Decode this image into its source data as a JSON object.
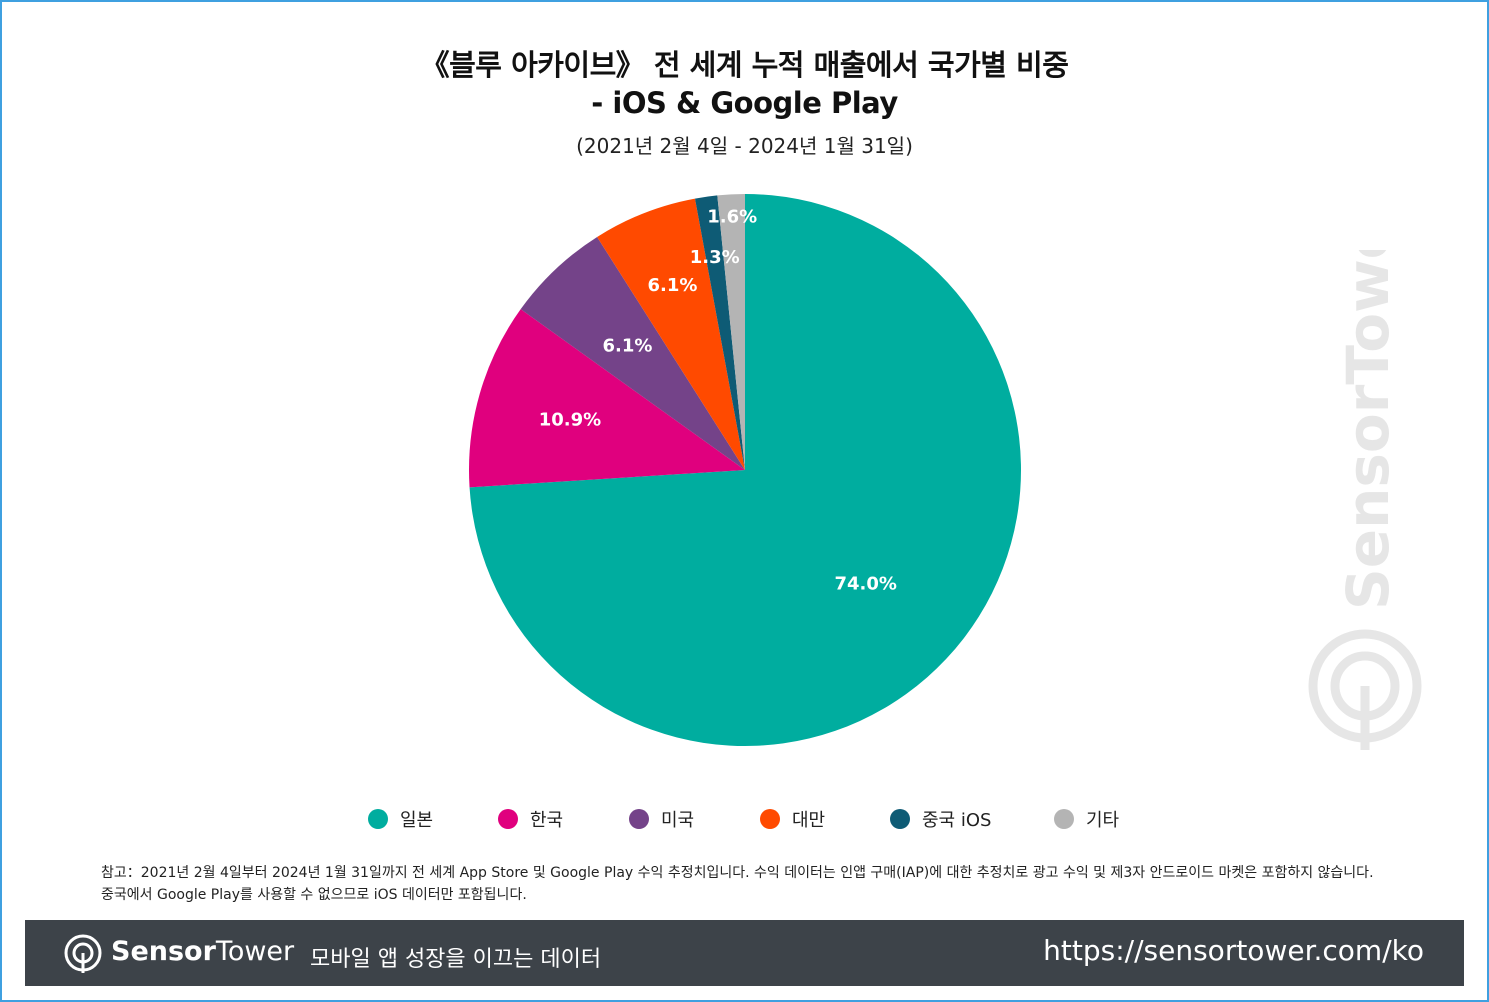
{
  "title_line1": "《블루 아카이브》 전 세계 누적 매출에서 국가별 비중",
  "title_line2": "- iOS & Google Play",
  "subtitle": "(2021년 2월 4일 - 2024년 1월 31일)",
  "chart_data": {
    "type": "pie",
    "slices": [
      {
        "name": "일본",
        "value": 74.0,
        "label": "74.0%",
        "color": "#00ad9f"
      },
      {
        "name": "한국",
        "value": 10.9,
        "label": "10.9%",
        "color": "#e0007e"
      },
      {
        "name": "미국",
        "value": 6.1,
        "label": "6.1%",
        "color": "#744389"
      },
      {
        "name": "대만",
        "value": 6.1,
        "label": "6.1%",
        "color": "#ff4a00"
      },
      {
        "name": "중국 iOS",
        "value": 1.3,
        "label": "1.3%",
        "color": "#0e5b75"
      },
      {
        "name": "기타",
        "value": 1.6,
        "label": "1.6%",
        "color": "#b4b4b4"
      }
    ],
    "legend_position": "bottom"
  },
  "notes": {
    "line1": "참고：2021년 2월 4일부터 2024년 1월 31일까지 전 세계 App Store 및 Google Play 수익 추정치입니다. 수익 데이터는 인앱 구매(IAP)에 대한 추정치로 광고 수익 및 제3자 안드로이드 마켓은 포함하지 않습니다.",
    "line2": "중국에서 Google Play를 사용할 수 없으므로 iOS 데이터만 포함됩니다."
  },
  "watermark_text": "SensorTower",
  "footer": {
    "brand_bold": "Sensor",
    "brand_light": "Tower",
    "tagline": "모바일 앱 성장을 이끄는 데이터",
    "url": "https://sensortower.com/ko"
  }
}
